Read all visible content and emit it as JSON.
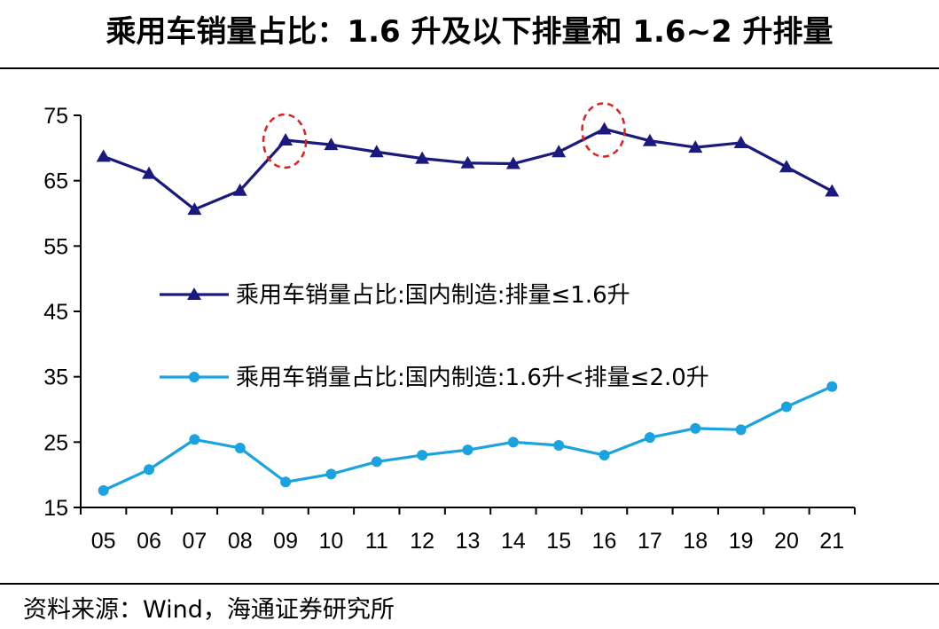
{
  "title": "乘用车销量占比：1.6 升及以下排量和 1.6~2 升排量",
  "source": "资料来源：Wind，海通证券研究所",
  "chart_data": {
    "type": "line",
    "title": "乘用车销量占比：1.6 升及以下排量和 1.6~2 升排量",
    "categories": [
      "05",
      "06",
      "07",
      "08",
      "09",
      "10",
      "11",
      "12",
      "13",
      "14",
      "15",
      "16",
      "17",
      "18",
      "19",
      "20",
      "21"
    ],
    "ylim": [
      15,
      75
    ],
    "yticks": [
      15,
      25,
      35,
      45,
      55,
      65,
      75
    ],
    "grid": false,
    "legend_position": "middle-left",
    "series": [
      {
        "name": "乘用车销量占比:国内制造:排量≤1.6升",
        "color": "#1a1a7e",
        "marker": "triangle",
        "values": [
          68.7,
          66.1,
          60.6,
          63.5,
          71.2,
          70.5,
          69.4,
          68.4,
          67.7,
          67.6,
          69.4,
          72.9,
          71.1,
          70.1,
          70.8,
          67.1,
          63.4
        ]
      },
      {
        "name": "乘用车销量占比:国内制造:1.6升<排量≤2.0升",
        "color": "#1aa3e0",
        "marker": "circle",
        "values": [
          17.6,
          20.8,
          25.4,
          24.1,
          18.9,
          20.1,
          22.0,
          23.0,
          23.8,
          25.0,
          24.5,
          23.0,
          25.7,
          27.1,
          26.9,
          30.4,
          33.5
        ]
      }
    ],
    "highlighted": [
      {
        "series": 0,
        "category": "09"
      },
      {
        "series": 0,
        "category": "16"
      }
    ],
    "highlight_color": "#e02020"
  }
}
